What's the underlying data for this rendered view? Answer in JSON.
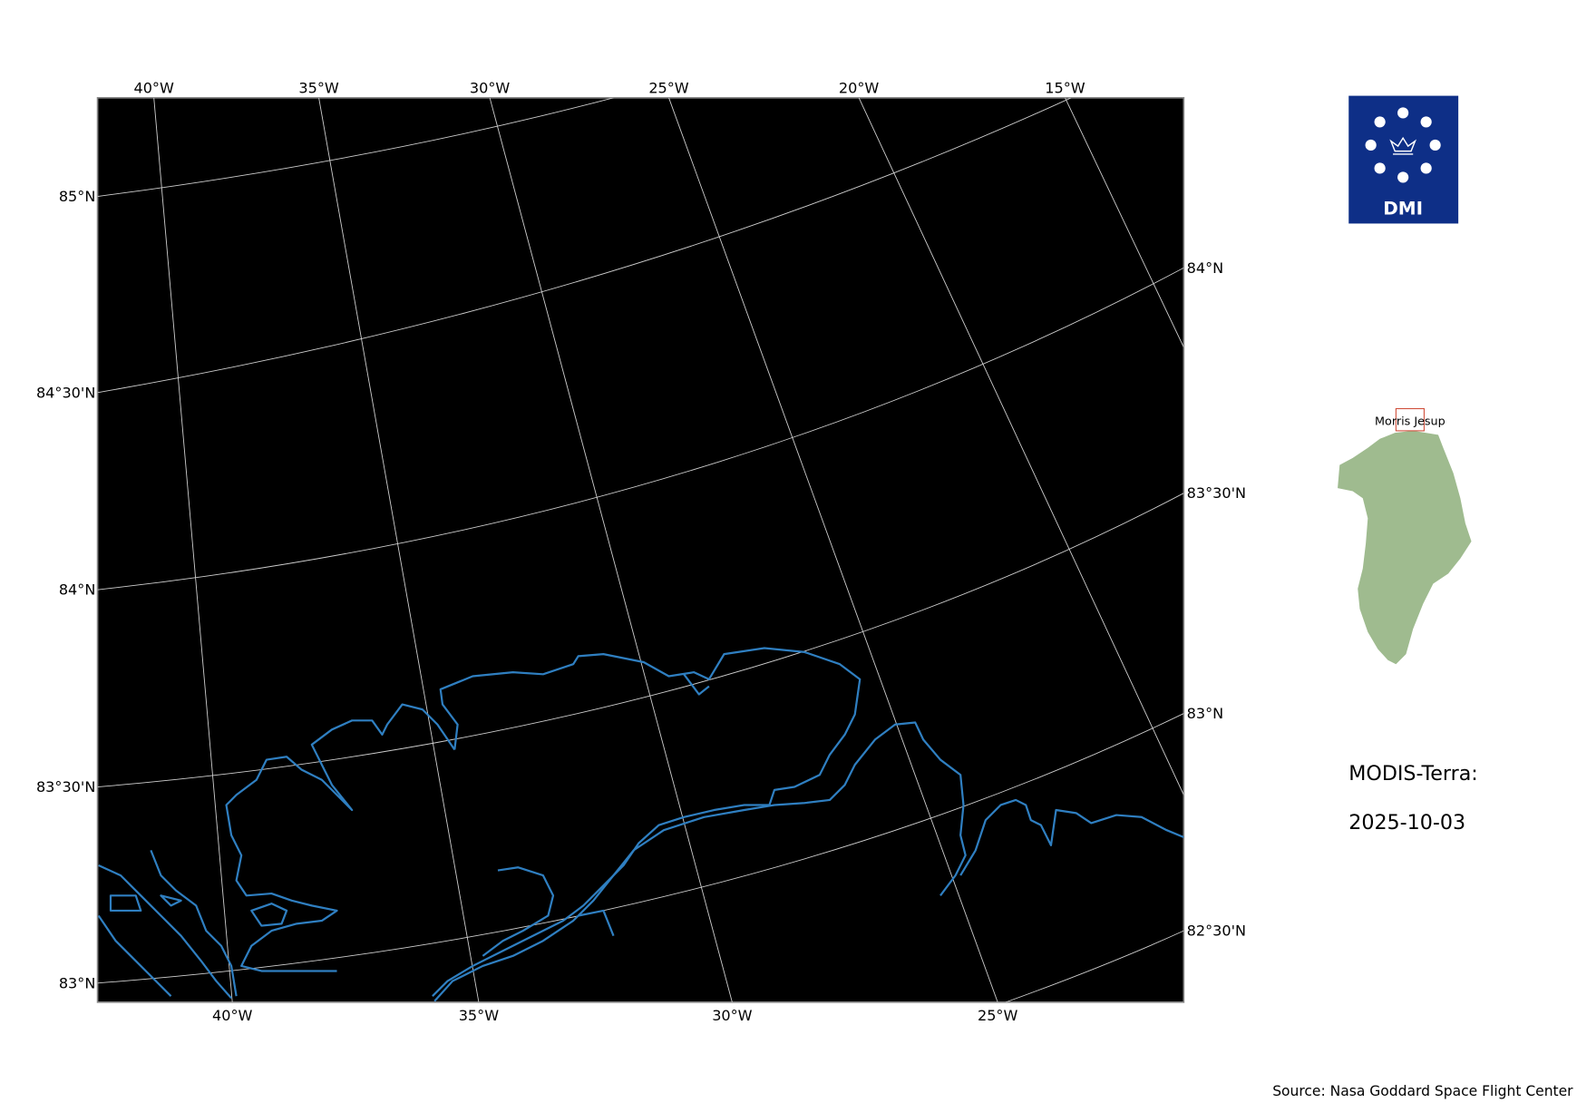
{
  "map": {
    "type": "satellite-map",
    "background": "#000000",
    "coastline_color": "#2f7fc1",
    "gridline_color": "#d0d0d0",
    "lon_labels_top": [
      "40°W",
      "35°W",
      "30°W",
      "25°W",
      "20°W",
      "15°W"
    ],
    "lon_labels_bottom": [
      "40°W",
      "35°W",
      "30°W",
      "25°W"
    ],
    "lat_labels_left": [
      "85°N",
      "84°30'N",
      "84°N",
      "83°30'N",
      "83°N"
    ],
    "lat_labels_right": [
      "84°N",
      "83°30'N",
      "83°N",
      "82°30'N"
    ]
  },
  "logo": {
    "text": "DMI",
    "color": "#0e2f87"
  },
  "inset": {
    "label": "Morris Jesup",
    "land_color": "#9fbb8f",
    "box_color": "#d0503c"
  },
  "title": {
    "sensor": "MODIS-Terra:",
    "date": "2025-10-03"
  },
  "source": "Source: Nasa Goddard Space Flight Center"
}
